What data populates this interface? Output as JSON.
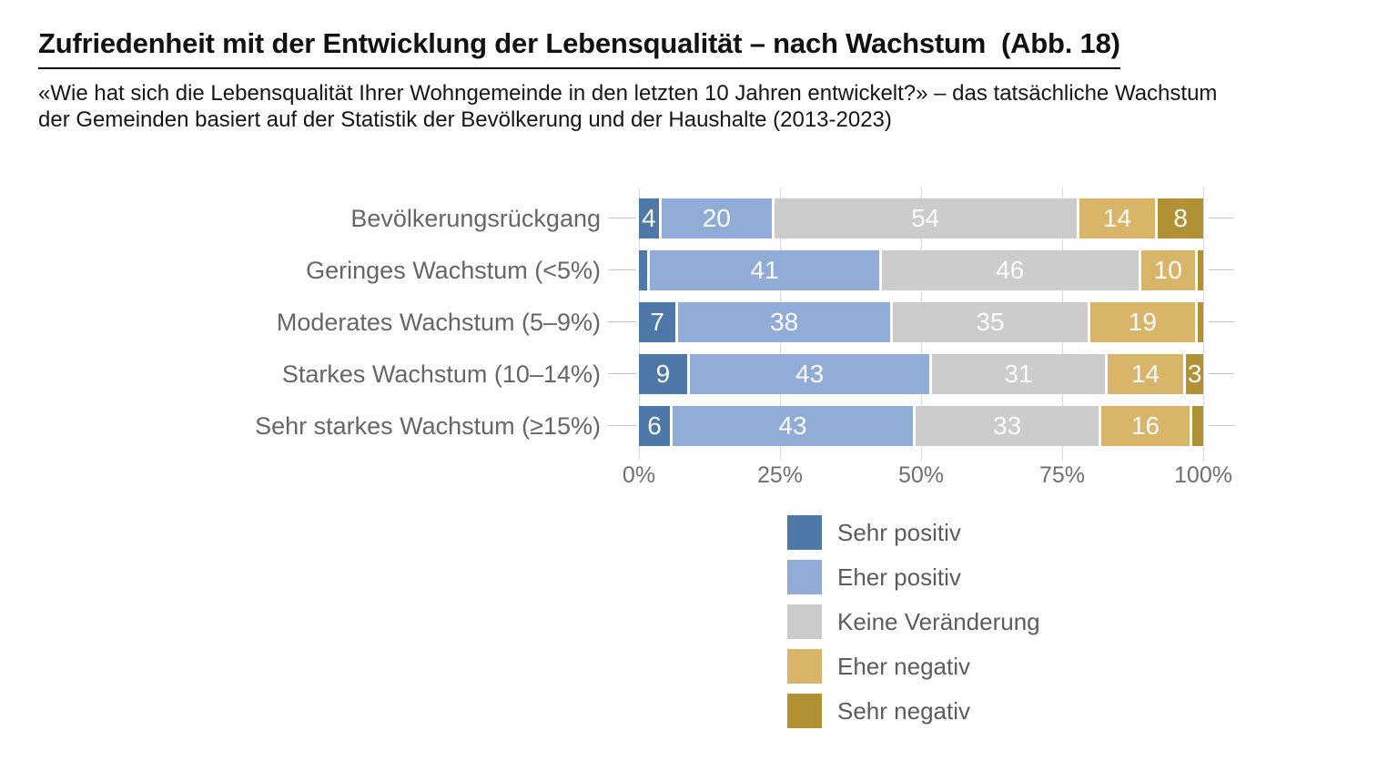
{
  "title": "Zufriedenheit mit der Entwicklung der Lebensqualität – nach Wachstum  (Abb. 18)",
  "subtitle_line1": "«Wie hat sich die Lebensqualität Ihrer Wohngemeinde in den letzten 10 Jahren entwickelt?» – das tatsächliche Wachstum",
  "subtitle_line2": "der Gemeinden basiert auf der Statistik der Bevölkerung und der Haushalte (2013-2023)",
  "colors": {
    "sehr_positiv": "#4d78a7",
    "eher_positiv": "#90acd7",
    "keine_veraenderung": "#cccccc",
    "eher_negativ": "#d9b569",
    "sehr_negativ": "#b29134",
    "bar_value_text": "#fbfbfb",
    "gridline": "#d9d9d9",
    "leader_line": "#c6c6c6",
    "category_text": "#666666",
    "axis_text": "#6f6f6f",
    "legend_text": "#5c5c5c"
  },
  "chart_data": {
    "type": "bar",
    "orientation": "horizontal",
    "stacked": true,
    "unit": "percent",
    "xlim": [
      0,
      100
    ],
    "x_ticks": [
      "0%",
      "25%",
      "50%",
      "75%",
      "100%"
    ],
    "x_tick_values": [
      0,
      25,
      50,
      75,
      100
    ],
    "grid": true,
    "legend_position": "bottom-right",
    "categories": [
      "Bevölkerungsrückgang",
      "Geringes Wachstum (<5%)",
      "Moderates Wachstum (5–9%)",
      "Starkes Wachstum (10–14%)",
      "Sehr starkes Wachstum (≥15%)"
    ],
    "series": [
      {
        "name": "Sehr positiv",
        "color": "#4d78a7",
        "values": [
          4,
          2,
          7,
          9,
          6
        ],
        "labels": [
          "4",
          "",
          "7",
          "9",
          "6"
        ]
      },
      {
        "name": "Eher positiv",
        "color": "#90acd7",
        "values": [
          20,
          41,
          38,
          43,
          43
        ],
        "labels": [
          "20",
          "41",
          "38",
          "43",
          "43"
        ]
      },
      {
        "name": "Keine Veränderung",
        "color": "#cccccc",
        "values": [
          54,
          46,
          35,
          31,
          33
        ],
        "labels": [
          "54",
          "46",
          "35",
          "31",
          "33"
        ]
      },
      {
        "name": "Eher negativ",
        "color": "#d9b569",
        "values": [
          14,
          10,
          19,
          14,
          16
        ],
        "labels": [
          "14",
          "10",
          "19",
          "14",
          "16"
        ]
      },
      {
        "name": "Sehr negativ",
        "color": "#b29134",
        "values": [
          8,
          1,
          1,
          3,
          2
        ],
        "labels": [
          "8",
          "",
          "",
          "3",
          ""
        ]
      }
    ]
  }
}
